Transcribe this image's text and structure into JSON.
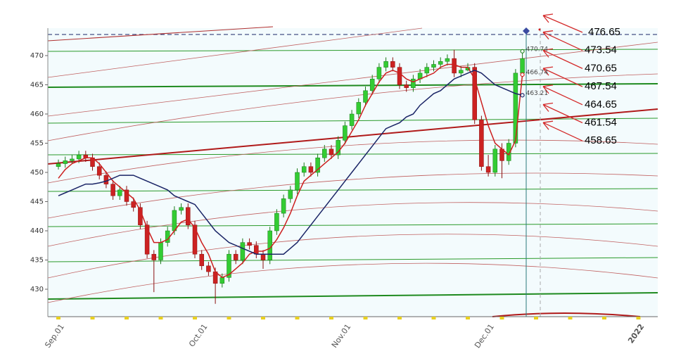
{
  "chart_data": {
    "type": "candlestick",
    "categories": [
      "Sep.01",
      null,
      null,
      null,
      null,
      null,
      null,
      null,
      null,
      null,
      null,
      null,
      null,
      null,
      null,
      null,
      null,
      null,
      null,
      null,
      null,
      "Oct.01",
      null,
      null,
      null,
      null,
      null,
      null,
      null,
      null,
      null,
      null,
      null,
      null,
      null,
      null,
      null,
      null,
      null,
      null,
      null,
      null,
      "Nov.01",
      null,
      null,
      null,
      null,
      null,
      null,
      null,
      null,
      null,
      null,
      null,
      null,
      null,
      null,
      null,
      null,
      null,
      null,
      null,
      null,
      "Dec.01",
      null,
      null,
      null,
      null,
      null,
      null,
      null,
      null,
      null,
      null,
      null,
      null,
      null,
      null,
      null,
      null,
      null,
      null,
      null,
      null,
      null,
      "2022",
      null,
      null
    ],
    "candles": [
      [
        451,
        452.2,
        450.5,
        451.5
      ],
      [
        451.5,
        452.7,
        450.8,
        452
      ],
      [
        452,
        453,
        451.5,
        452.3
      ],
      [
        452.3,
        453.7,
        451.6,
        453
      ],
      [
        453,
        453.7,
        451.8,
        452.5
      ],
      [
        452.5,
        453.2,
        450.3,
        451
      ],
      [
        451,
        451.7,
        448.8,
        449.5
      ],
      [
        449.5,
        450.2,
        447.3,
        448
      ],
      [
        448,
        448.7,
        445.3,
        446
      ],
      [
        446,
        447.7,
        445.3,
        447
      ],
      [
        447,
        447.7,
        444.3,
        445
      ],
      [
        445,
        445.7,
        443.3,
        444
      ],
      [
        444,
        444.7,
        440.3,
        441
      ],
      [
        441,
        441.7,
        435.3,
        436
      ],
      [
        436,
        436.7,
        429.5,
        435
      ],
      [
        435,
        438.7,
        434.3,
        438
      ],
      [
        438,
        440.7,
        437.3,
        440
      ],
      [
        440,
        444.2,
        439.3,
        443.5
      ],
      [
        443.5,
        444.7,
        442.8,
        444
      ],
      [
        444,
        444.7,
        440.3,
        441
      ],
      [
        441,
        441.7,
        435.3,
        436
      ],
      [
        436,
        436.7,
        433.3,
        434
      ],
      [
        434,
        434.7,
        432.3,
        433
      ],
      [
        433,
        433.7,
        427.5,
        431
      ],
      [
        431,
        432.7,
        430.3,
        432
      ],
      [
        432,
        436.7,
        431.3,
        436
      ],
      [
        436,
        436.7,
        434.3,
        435
      ],
      [
        435,
        438.7,
        434.3,
        438
      ],
      [
        438,
        438.7,
        436.8,
        437.5
      ],
      [
        437.5,
        438.2,
        435.3,
        436
      ],
      [
        436,
        436.7,
        433.5,
        435
      ],
      [
        435,
        440.7,
        434.3,
        440
      ],
      [
        440,
        443.7,
        439.3,
        443
      ],
      [
        443,
        446.2,
        442.3,
        445.5
      ],
      [
        445.5,
        447.7,
        444.8,
        447
      ],
      [
        447,
        450.7,
        446.3,
        450
      ],
      [
        450,
        451.7,
        449.3,
        451
      ],
      [
        451,
        451.7,
        449.3,
        450
      ],
      [
        450,
        453.2,
        449.3,
        452.5
      ],
      [
        452.5,
        454.7,
        451.8,
        454
      ],
      [
        454,
        454.7,
        452.3,
        453
      ],
      [
        453,
        456.2,
        452.3,
        455.5
      ],
      [
        455.5,
        458.7,
        454.8,
        458
      ],
      [
        458,
        460.7,
        457.3,
        460
      ],
      [
        460,
        462.7,
        459.3,
        462
      ],
      [
        462,
        464.7,
        461.3,
        464
      ],
      [
        464,
        466.7,
        463.3,
        466
      ],
      [
        466,
        468.7,
        465.3,
        468
      ],
      [
        468,
        469.7,
        467.3,
        469
      ],
      [
        469,
        469.7,
        467.3,
        468
      ],
      [
        468,
        468.7,
        464.3,
        465
      ],
      [
        465,
        465.7,
        463.8,
        464.5
      ],
      [
        464.5,
        466.7,
        463.8,
        466
      ],
      [
        466,
        467.7,
        465.3,
        467
      ],
      [
        467,
        468.7,
        466.3,
        468
      ],
      [
        468,
        469.2,
        467.3,
        468.5
      ],
      [
        468.5,
        469.7,
        467.8,
        469
      ],
      [
        469,
        470.2,
        468.3,
        469.5
      ],
      [
        469.5,
        471,
        466.3,
        467
      ],
      [
        467,
        468.2,
        466.3,
        467.5
      ],
      [
        467.5,
        468.7,
        467.3,
        468
      ],
      [
        468,
        468.7,
        458.3,
        459
      ],
      [
        459,
        459.7,
        450.3,
        451
      ],
      [
        451,
        453,
        449.3,
        450
      ],
      [
        450,
        454.7,
        449.3,
        454
      ],
      [
        454,
        455,
        449,
        452
      ],
      [
        452,
        455.7,
        451.3,
        455
      ],
      [
        455,
        467.7,
        454.3,
        467
      ],
      [
        467,
        470.8,
        466.3,
        469.5
      ],
      null,
      null,
      null,
      null,
      null,
      null,
      null,
      null,
      null,
      null,
      null,
      null,
      null,
      null,
      null,
      null,
      null,
      null,
      null
    ],
    "up_color": "#33cc33",
    "down_color": "#cc2222",
    "series": [
      {
        "color": "#cc1f1f",
        "values": [
          449,
          450.5,
          451.5,
          452,
          452.5,
          452.5,
          451.5,
          450,
          448.5,
          447.5,
          446.5,
          445.5,
          443.5,
          440.5,
          438,
          438,
          438.5,
          440,
          441.5,
          442,
          440.5,
          438,
          436,
          433,
          432,
          432.5,
          433.5,
          434.5,
          436,
          436.5,
          436.5,
          437,
          438.5,
          440.5,
          443,
          446,
          448.5,
          449.5,
          450.5,
          451.5,
          452.5,
          453.5,
          455,
          457,
          459,
          461.5,
          463.5,
          465.5,
          467,
          467.5,
          467,
          466,
          465.5,
          466,
          466.5,
          467,
          468,
          468.5,
          468.5,
          468,
          468,
          466,
          462,
          458,
          455,
          454,
          453,
          455.5,
          466.74,
          null,
          null,
          null,
          null,
          null,
          null,
          null,
          null,
          null,
          null,
          null,
          null,
          null,
          null,
          null,
          null,
          null,
          null,
          null
        ]
      },
      {
        "color": "#1a2466",
        "values": [
          446,
          446.5,
          447,
          447.5,
          448,
          448,
          448.2,
          448.5,
          449,
          449.5,
          449.5,
          449.5,
          449,
          448.5,
          448,
          447.5,
          447,
          446,
          445.5,
          445,
          444.5,
          443,
          441.5,
          440,
          439,
          438,
          437.5,
          437,
          436.5,
          436,
          436,
          436,
          436,
          436,
          437,
          438,
          439.5,
          441,
          442.5,
          444,
          445.5,
          447,
          448.5,
          450,
          451.5,
          453,
          454.5,
          456,
          457.5,
          458,
          458.5,
          459.5,
          460,
          461.5,
          462.5,
          463.5,
          464,
          465,
          466,
          466.5,
          467,
          467.5,
          467,
          466,
          465,
          464.5,
          464,
          463.5,
          463.21,
          null,
          null,
          null,
          null,
          null,
          null,
          null,
          null,
          null,
          null,
          null,
          null,
          null,
          null,
          null,
          null,
          null,
          null,
          null
        ]
      }
    ],
    "markers": [
      {
        "value": 470.74,
        "color": "#2a8a2a"
      },
      {
        "value": 466.74,
        "color": "#cc1f1f"
      },
      {
        "value": 463.21,
        "color": "#1a2466"
      }
    ],
    "ylim": [
      425.3,
      474.7
    ],
    "yticks": [
      430,
      435,
      440,
      445,
      450,
      455,
      460,
      465,
      470
    ],
    "annotations": [
      "476.65",
      "473.54",
      "470.65",
      "467.54",
      "464.65",
      "461.54",
      "458.65"
    ]
  }
}
